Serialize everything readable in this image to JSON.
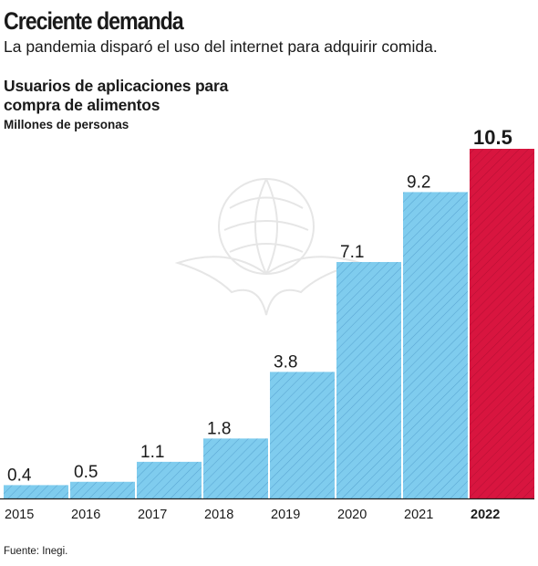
{
  "headline": "Creciente demanda",
  "deck": "La pandemia disparó el uso del internet para adquirir comida.",
  "chart_data": {
    "type": "bar",
    "title_lines": [
      "Usuarios de aplicaciones para",
      "compra de alimentos"
    ],
    "units": "Millones de personas",
    "categories": [
      "2015",
      "2016",
      "2017",
      "2018",
      "2019",
      "2020",
      "2021",
      "2022"
    ],
    "values": [
      0.4,
      0.5,
      1.1,
      1.8,
      3.8,
      7.1,
      9.2,
      10.5
    ],
    "value_labels": [
      "0.4",
      "0.5",
      "1.1",
      "1.8",
      "3.8",
      "7.1",
      "9.2",
      "10.5"
    ],
    "highlight_category": "2022",
    "colors": {
      "bar": "#7fccee",
      "hatch": "#5aa6d2",
      "highlight": "#d8153f",
      "highlight_hatch": "#b80e34",
      "axis": "#222222"
    },
    "ylim": [
      0,
      10.5
    ],
    "grid": false
  },
  "source": "Fuente: Inegi."
}
